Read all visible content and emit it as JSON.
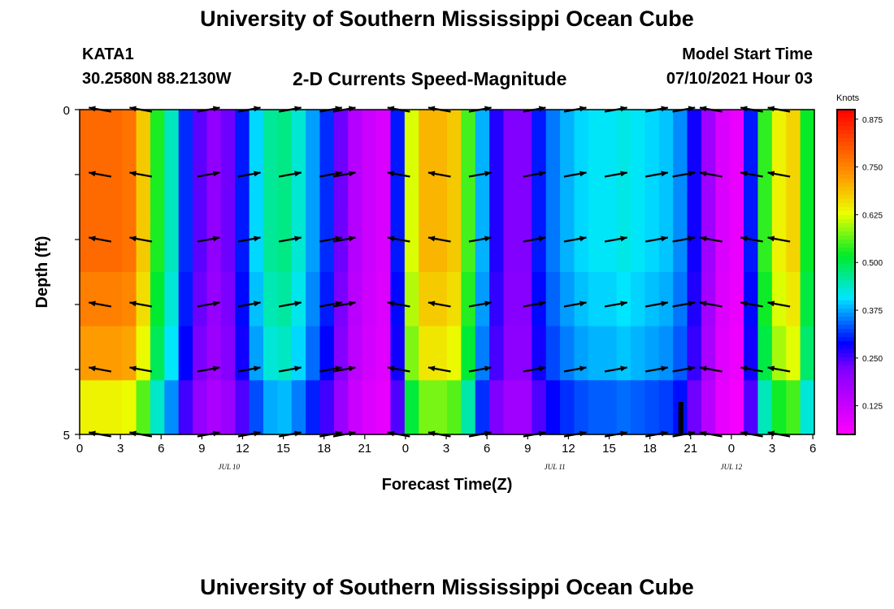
{
  "header": {
    "title": "University of Southern Mississippi Ocean Cube",
    "station": "KATA1",
    "coords": "30.2580N  88.2130W",
    "plot_title": "2-D Currents Speed-Magnitude",
    "model_start_label": "Model Start Time",
    "model_start_time": "07/10/2021 Hour 03"
  },
  "footer": {
    "title": "University of Southern Mississippi Ocean Cube"
  },
  "chart_data": {
    "type": "heatmap",
    "title": "2-D Currents Speed-Magnitude",
    "xlabel": "Forecast Time(Z)",
    "ylabel": "Depth (ft)",
    "x_hours": [
      0,
      51
    ],
    "ylim": [
      0,
      5
    ],
    "x_tick_labels": [
      "0",
      "3",
      "6",
      "9",
      "12",
      "15",
      "18",
      "21",
      "0",
      "3",
      "6",
      "9",
      "12",
      "15",
      "18",
      "21",
      "0",
      "3",
      "6"
    ],
    "y_tick_labels": [
      "0",
      "5"
    ],
    "date_labels": [
      {
        "text": "JUL 10",
        "hour": 11
      },
      {
        "text": "JUL 11",
        "hour": 35
      },
      {
        "text": "JUL 12",
        "hour": 48
      }
    ],
    "colorbar": {
      "unit": "Knots",
      "range": [
        0.05,
        0.9
      ],
      "ticks": [
        "0.875",
        "0.750",
        "0.625",
        "0.500",
        "0.375",
        "0.250",
        "0.125"
      ],
      "tick_values": [
        0.875,
        0.75,
        0.625,
        0.5,
        0.375,
        0.25,
        0.125
      ]
    },
    "speed_knots": [
      0.78,
      0.78,
      0.78,
      0.77,
      0.68,
      0.53,
      0.44,
      0.31,
      0.24,
      0.2,
      0.23,
      0.3,
      0.4,
      0.46,
      0.47,
      0.43,
      0.37,
      0.31,
      0.23,
      0.15,
      0.12,
      0.1,
      0.3,
      0.62,
      0.7,
      0.7,
      0.68,
      0.55,
      0.38,
      0.27,
      0.22,
      0.22,
      0.3,
      0.35,
      0.38,
      0.4,
      0.41,
      0.41,
      0.42,
      0.41,
      0.4,
      0.39,
      0.36,
      0.28,
      0.18,
      0.1,
      0.08,
      0.3,
      0.54,
      0.64,
      0.67,
      0.52
    ],
    "depth_factors": [
      1.0,
      1.0,
      1.0,
      0.97,
      0.93,
      0.82
    ],
    "arrow_columns": [
      {
        "hour": 1.5,
        "dir": -1
      },
      {
        "hour": 4.5,
        "dir": -1
      },
      {
        "hour": 9.5,
        "dir": 1
      },
      {
        "hour": 12.5,
        "dir": 1
      },
      {
        "hour": 15.5,
        "dir": 1
      },
      {
        "hour": 18.5,
        "dir": 1
      },
      {
        "hour": 19.5,
        "dir": 1
      },
      {
        "hour": 23.5,
        "dir": -1
      },
      {
        "hour": 26.5,
        "dir": -1
      },
      {
        "hour": 29.5,
        "dir": 1
      },
      {
        "hour": 33.5,
        "dir": 1
      },
      {
        "hour": 36.5,
        "dir": 1
      },
      {
        "hour": 39.5,
        "dir": 1
      },
      {
        "hour": 42.5,
        "dir": 1
      },
      {
        "hour": 44.5,
        "dir": 1
      },
      {
        "hour": 46.5,
        "dir": -1
      },
      {
        "hour": 49.5,
        "dir": -1
      },
      {
        "hour": 51.5,
        "dir": -1
      }
    ]
  }
}
